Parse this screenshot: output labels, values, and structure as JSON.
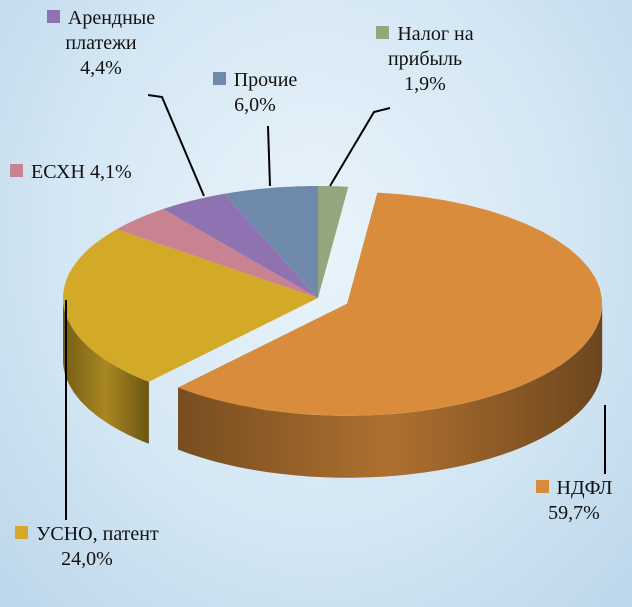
{
  "chart_data": {
    "type": "pie",
    "categories": [
      "Налог на прибыль",
      "НДФЛ",
      "УСНО, патент",
      "ЕСХН",
      "Арендные платежи",
      "Прочие"
    ],
    "values": [
      1.9,
      59.7,
      24.0,
      4.1,
      4.4,
      6.0
    ],
    "value_labels": [
      "1,9%",
      "59,7%",
      "24,0%",
      "4,1%",
      "4,4%",
      "6,0%"
    ],
    "colors": [
      "#93a67e",
      "#d98c3b",
      "#d3a928",
      "#c9828f",
      "#8f72b1",
      "#6f89ab"
    ]
  }
}
